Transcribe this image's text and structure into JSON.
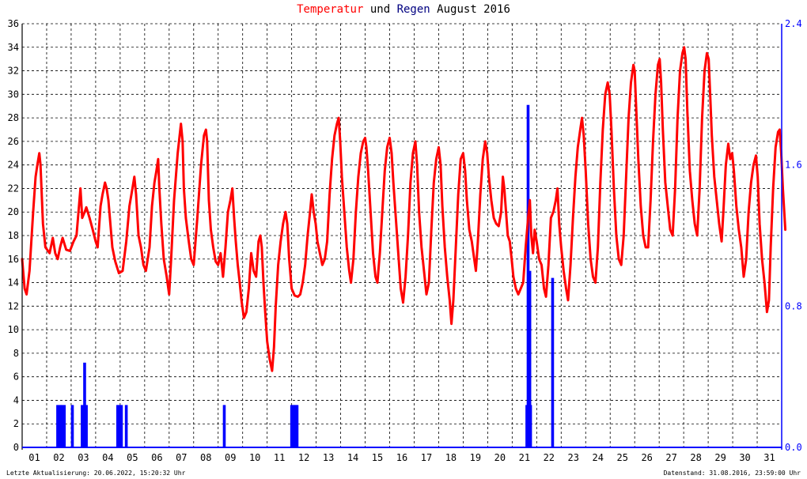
{
  "title": {
    "temp": "Temperatur",
    "und": "und",
    "rain": "Regen",
    "month": "August 2016"
  },
  "footer": {
    "left": "Letzte Aktualisierung: 20.06.2022, 15:20:32 Uhr",
    "right": "Datenstand: 31.08.2016, 23:59:00 Uhr"
  },
  "colors": {
    "temperature": "#ff0000",
    "rain": "#0000ff",
    "right_axis": "#0000ff",
    "grid": "#000000"
  },
  "chart_data": {
    "type": "line",
    "title": "Temperatur und Regen August 2016",
    "grid": true,
    "x_categories": [
      "01",
      "02",
      "03",
      "04",
      "05",
      "06",
      "07",
      "08",
      "09",
      "10",
      "11",
      "12",
      "13",
      "14",
      "15",
      "16",
      "17",
      "18",
      "19",
      "20",
      "21",
      "22",
      "23",
      "24",
      "25",
      "26",
      "27",
      "28",
      "29",
      "30",
      "31"
    ],
    "left_axis": {
      "ylim": [
        0,
        36
      ],
      "ticks": [
        0,
        2,
        4,
        6,
        8,
        10,
        12,
        14,
        16,
        18,
        20,
        22,
        24,
        26,
        28,
        30,
        32,
        34,
        36
      ]
    },
    "right_axis": {
      "ylim": [
        0,
        2.4
      ],
      "ticks": [
        "0.0",
        "0.8",
        "1.6",
        "2.4"
      ]
    },
    "temperature_series": [
      [
        0.0,
        16.0
      ],
      [
        0.1,
        13.5
      ],
      [
        0.18,
        13.0
      ],
      [
        0.3,
        15.0
      ],
      [
        0.45,
        20.0
      ],
      [
        0.55,
        23.0
      ],
      [
        0.62,
        24.0
      ],
      [
        0.7,
        25.0
      ],
      [
        0.75,
        24.0
      ],
      [
        0.85,
        19.0
      ],
      [
        0.95,
        17.0
      ],
      [
        1.12,
        16.5
      ],
      [
        1.25,
        17.8
      ],
      [
        1.35,
        16.5
      ],
      [
        1.45,
        16.0
      ],
      [
        1.55,
        17.0
      ],
      [
        1.65,
        17.8
      ],
      [
        1.8,
        16.8
      ],
      [
        1.95,
        16.7
      ],
      [
        2.1,
        17.5
      ],
      [
        2.22,
        18.0
      ],
      [
        2.3,
        20.0
      ],
      [
        2.38,
        22.0
      ],
      [
        2.45,
        19.5
      ],
      [
        2.55,
        20.0
      ],
      [
        2.62,
        20.4
      ],
      [
        2.75,
        19.5
      ],
      [
        2.88,
        18.5
      ],
      [
        3.0,
        17.5
      ],
      [
        3.08,
        17.0
      ],
      [
        3.2,
        20.5
      ],
      [
        3.28,
        21.5
      ],
      [
        3.38,
        22.5
      ],
      [
        3.45,
        22.0
      ],
      [
        3.52,
        21.0
      ],
      [
        3.6,
        19.0
      ],
      [
        3.68,
        17.0
      ],
      [
        3.8,
        15.8
      ],
      [
        3.95,
        14.8
      ],
      [
        4.1,
        15.0
      ],
      [
        4.25,
        17.5
      ],
      [
        4.38,
        20.5
      ],
      [
        4.5,
        22.0
      ],
      [
        4.58,
        23.0
      ],
      [
        4.65,
        21.5
      ],
      [
        4.75,
        18.0
      ],
      [
        4.85,
        17.0
      ],
      [
        4.95,
        15.5
      ],
      [
        5.05,
        15.0
      ],
      [
        5.2,
        17.0
      ],
      [
        5.3,
        20.5
      ],
      [
        5.4,
        22.5
      ],
      [
        5.48,
        23.5
      ],
      [
        5.55,
        24.5
      ],
      [
        5.6,
        22.0
      ],
      [
        5.68,
        19.0
      ],
      [
        5.78,
        16.0
      ],
      [
        5.9,
        14.5
      ],
      [
        6.0,
        13.0
      ],
      [
        6.08,
        16.0
      ],
      [
        6.2,
        21.0
      ],
      [
        6.35,
        25.0
      ],
      [
        6.48,
        27.5
      ],
      [
        6.55,
        26.0
      ],
      [
        6.6,
        22.0
      ],
      [
        6.68,
        19.5
      ],
      [
        6.8,
        17.5
      ],
      [
        6.9,
        16.0
      ],
      [
        7.0,
        15.5
      ],
      [
        7.15,
        19.5
      ],
      [
        7.3,
        24.0
      ],
      [
        7.42,
        26.5
      ],
      [
        7.5,
        27.0
      ],
      [
        7.55,
        26.0
      ],
      [
        7.62,
        21.0
      ],
      [
        7.7,
        18.5
      ],
      [
        7.8,
        17.0
      ],
      [
        7.9,
        15.8
      ],
      [
        8.0,
        15.5
      ],
      [
        8.1,
        16.5
      ],
      [
        8.2,
        14.5
      ],
      [
        8.3,
        17.0
      ],
      [
        8.4,
        20.0
      ],
      [
        8.5,
        21.0
      ],
      [
        8.58,
        22.0
      ],
      [
        8.65,
        19.5
      ],
      [
        8.72,
        17.5
      ],
      [
        8.8,
        15.5
      ],
      [
        8.88,
        14.0
      ],
      [
        8.95,
        12.5
      ],
      [
        9.05,
        11.0
      ],
      [
        9.15,
        11.5
      ],
      [
        9.25,
        13.5
      ],
      [
        9.35,
        16.5
      ],
      [
        9.45,
        15.0
      ],
      [
        9.55,
        14.5
      ],
      [
        9.65,
        17.5
      ],
      [
        9.72,
        18.0
      ],
      [
        9.78,
        17.0
      ],
      [
        9.85,
        14.0
      ],
      [
        9.92,
        11.5
      ],
      [
        10.0,
        9.0
      ],
      [
        10.1,
        7.5
      ],
      [
        10.2,
        6.5
      ],
      [
        10.28,
        8.5
      ],
      [
        10.35,
        12.0
      ],
      [
        10.45,
        15.5
      ],
      [
        10.55,
        17.5
      ],
      [
        10.65,
        19.0
      ],
      [
        10.75,
        20.0
      ],
      [
        10.82,
        19.0
      ],
      [
        10.9,
        16.0
      ],
      [
        11.0,
        13.5
      ],
      [
        11.12,
        12.9
      ],
      [
        11.25,
        12.8
      ],
      [
        11.35,
        13.0
      ],
      [
        11.45,
        14.0
      ],
      [
        11.55,
        15.5
      ],
      [
        11.65,
        18.0
      ],
      [
        11.75,
        20.0
      ],
      [
        11.82,
        21.5
      ],
      [
        11.9,
        20.0
      ],
      [
        11.98,
        19.0
      ],
      [
        12.05,
        17.5
      ],
      [
        12.15,
        16.5
      ],
      [
        12.25,
        15.5
      ],
      [
        12.35,
        16.0
      ],
      [
        12.45,
        17.5
      ],
      [
        12.55,
        21.5
      ],
      [
        12.65,
        24.5
      ],
      [
        12.75,
        26.5
      ],
      [
        12.85,
        27.5
      ],
      [
        12.92,
        28.0
      ],
      [
        12.98,
        26.0
      ],
      [
        13.05,
        23.0
      ],
      [
        13.15,
        20.0
      ],
      [
        13.25,
        17.0
      ],
      [
        13.35,
        15.0
      ],
      [
        13.42,
        14.0
      ],
      [
        13.52,
        16.0
      ],
      [
        13.62,
        20.0
      ],
      [
        13.72,
        23.0
      ],
      [
        13.82,
        25.0
      ],
      [
        13.92,
        26.0
      ],
      [
        14.0,
        26.3
      ],
      [
        14.05,
        25.5
      ],
      [
        14.12,
        23.5
      ],
      [
        14.22,
        20.0
      ],
      [
        14.32,
        16.5
      ],
      [
        14.42,
        14.5
      ],
      [
        14.5,
        14.0
      ],
      [
        14.6,
        16.5
      ],
      [
        14.7,
        20.0
      ],
      [
        14.8,
        23.5
      ],
      [
        14.9,
        25.5
      ],
      [
        15.0,
        26.3
      ],
      [
        15.08,
        25.0
      ],
      [
        15.15,
        22.5
      ],
      [
        15.25,
        19.5
      ],
      [
        15.35,
        16.5
      ],
      [
        15.45,
        13.5
      ],
      [
        15.55,
        12.3
      ],
      [
        15.65,
        14.5
      ],
      [
        15.75,
        18.0
      ],
      [
        15.85,
        22.5
      ],
      [
        15.95,
        25.0
      ],
      [
        16.05,
        26.0
      ],
      [
        16.12,
        24.0
      ],
      [
        16.2,
        20.0
      ],
      [
        16.3,
        17.0
      ],
      [
        16.4,
        15.0
      ],
      [
        16.5,
        13.0
      ],
      [
        16.6,
        14.0
      ],
      [
        16.7,
        18.5
      ],
      [
        16.8,
        22.5
      ],
      [
        16.9,
        24.5
      ],
      [
        17.0,
        25.5
      ],
      [
        17.08,
        24.0
      ],
      [
        17.15,
        20.5
      ],
      [
        17.25,
        17.0
      ],
      [
        17.35,
        14.5
      ],
      [
        17.45,
        12.5
      ],
      [
        17.52,
        10.5
      ],
      [
        17.6,
        12.5
      ],
      [
        17.7,
        17.0
      ],
      [
        17.8,
        21.5
      ],
      [
        17.9,
        24.5
      ],
      [
        18.0,
        25.0
      ],
      [
        18.08,
        23.5
      ],
      [
        18.15,
        21.0
      ],
      [
        18.25,
        18.5
      ],
      [
        18.35,
        17.5
      ],
      [
        18.45,
        16.0
      ],
      [
        18.52,
        15.0
      ],
      [
        18.6,
        17.5
      ],
      [
        18.7,
        21.5
      ],
      [
        18.8,
        24.5
      ],
      [
        18.9,
        26.0
      ],
      [
        18.98,
        25.0
      ],
      [
        19.05,
        23.0
      ],
      [
        19.15,
        21.0
      ],
      [
        19.25,
        19.5
      ],
      [
        19.35,
        19.0
      ],
      [
        19.45,
        18.8
      ],
      [
        19.55,
        20.0
      ],
      [
        19.62,
        23.0
      ],
      [
        19.68,
        22.0
      ],
      [
        19.75,
        20.0
      ],
      [
        19.82,
        18.0
      ],
      [
        19.9,
        17.5
      ],
      [
        19.98,
        16.0
      ],
      [
        20.05,
        14.5
      ],
      [
        20.15,
        13.5
      ],
      [
        20.25,
        13.0
      ],
      [
        20.35,
        13.5
      ],
      [
        20.45,
        14.0
      ],
      [
        20.55,
        17.0
      ],
      [
        20.65,
        19.5
      ],
      [
        20.72,
        21.0
      ],
      [
        20.78,
        18.0
      ],
      [
        20.85,
        16.5
      ],
      [
        20.92,
        18.5
      ],
      [
        21.0,
        17.5
      ],
      [
        21.1,
        16.0
      ],
      [
        21.2,
        15.5
      ],
      [
        21.3,
        13.5
      ],
      [
        21.38,
        12.8
      ],
      [
        21.48,
        15.5
      ],
      [
        21.58,
        19.5
      ],
      [
        21.68,
        20.0
      ],
      [
        21.78,
        21.0
      ],
      [
        21.85,
        22.0
      ],
      [
        21.92,
        19.0
      ],
      [
        22.0,
        17.0
      ],
      [
        22.1,
        15.0
      ],
      [
        22.2,
        13.5
      ],
      [
        22.28,
        12.5
      ],
      [
        22.38,
        15.5
      ],
      [
        22.48,
        19.5
      ],
      [
        22.58,
        23.0
      ],
      [
        22.68,
        25.5
      ],
      [
        22.78,
        27.0
      ],
      [
        22.85,
        28.0
      ],
      [
        22.92,
        26.5
      ],
      [
        23.0,
        23.5
      ],
      [
        23.1,
        19.0
      ],
      [
        23.2,
        16.0
      ],
      [
        23.3,
        14.5
      ],
      [
        23.4,
        14.0
      ],
      [
        23.5,
        17.0
      ],
      [
        23.6,
        22.5
      ],
      [
        23.7,
        27.0
      ],
      [
        23.8,
        30.0
      ],
      [
        23.9,
        31.0
      ],
      [
        23.98,
        30.0
      ],
      [
        24.05,
        27.0
      ],
      [
        24.15,
        22.0
      ],
      [
        24.25,
        18.0
      ],
      [
        24.35,
        16.0
      ],
      [
        24.45,
        15.5
      ],
      [
        24.55,
        18.0
      ],
      [
        24.65,
        23.0
      ],
      [
        24.75,
        28.0
      ],
      [
        24.85,
        31.0
      ],
      [
        24.95,
        32.5
      ],
      [
        25.0,
        32.0
      ],
      [
        25.05,
        29.5
      ],
      [
        25.15,
        24.5
      ],
      [
        25.25,
        20.5
      ],
      [
        25.35,
        18.0
      ],
      [
        25.45,
        17.0
      ],
      [
        25.55,
        17.0
      ],
      [
        25.65,
        21.0
      ],
      [
        25.75,
        26.0
      ],
      [
        25.85,
        30.0
      ],
      [
        25.95,
        32.5
      ],
      [
        26.02,
        33.0
      ],
      [
        26.08,
        31.0
      ],
      [
        26.15,
        27.0
      ],
      [
        26.25,
        22.5
      ],
      [
        26.35,
        20.5
      ],
      [
        26.45,
        18.5
      ],
      [
        26.55,
        18.0
      ],
      [
        26.65,
        22.0
      ],
      [
        26.75,
        28.0
      ],
      [
        26.85,
        32.0
      ],
      [
        26.95,
        33.5
      ],
      [
        27.02,
        34.0
      ],
      [
        27.08,
        33.0
      ],
      [
        27.15,
        28.5
      ],
      [
        27.25,
        23.5
      ],
      [
        27.35,
        21.0
      ],
      [
        27.45,
        19.0
      ],
      [
        27.55,
        18.0
      ],
      [
        27.65,
        22.0
      ],
      [
        27.75,
        28.0
      ],
      [
        27.85,
        32.0
      ],
      [
        27.95,
        33.5
      ],
      [
        28.02,
        33.0
      ],
      [
        28.08,
        30.0
      ],
      [
        28.15,
        26.5
      ],
      [
        28.25,
        23.0
      ],
      [
        28.35,
        21.0
      ],
      [
        28.45,
        19.0
      ],
      [
        28.55,
        17.5
      ],
      [
        28.62,
        20.0
      ],
      [
        28.72,
        24.0
      ],
      [
        28.82,
        25.8
      ],
      [
        28.9,
        24.5
      ],
      [
        28.98,
        25.0
      ],
      [
        29.05,
        23.5
      ],
      [
        29.15,
        20.5
      ],
      [
        29.25,
        18.5
      ],
      [
        29.35,
        17.0
      ],
      [
        29.45,
        14.5
      ],
      [
        29.55,
        16.0
      ],
      [
        29.65,
        20.0
      ],
      [
        29.75,
        22.5
      ],
      [
        29.85,
        24.0
      ],
      [
        29.95,
        24.8
      ],
      [
        30.02,
        23.0
      ],
      [
        30.1,
        19.0
      ],
      [
        30.2,
        16.0
      ],
      [
        30.3,
        14.0
      ],
      [
        30.4,
        11.5
      ],
      [
        30.48,
        12.5
      ],
      [
        30.55,
        17.0
      ],
      [
        30.65,
        22.0
      ],
      [
        30.75,
        25.5
      ],
      [
        30.85,
        26.8
      ],
      [
        30.92,
        27.0
      ],
      [
        30.98,
        25.0
      ],
      [
        31.05,
        22.0
      ],
      [
        31.15,
        18.5
      ]
    ],
    "rain_series": [
      [
        1.45,
        0.24
      ],
      [
        1.55,
        0.24
      ],
      [
        1.62,
        0.24
      ],
      [
        1.72,
        0.24
      ],
      [
        2.05,
        0.24
      ],
      [
        2.45,
        0.24
      ],
      [
        2.55,
        0.48
      ],
      [
        2.62,
        0.24
      ],
      [
        3.9,
        0.24
      ],
      [
        3.98,
        0.24
      ],
      [
        4.05,
        0.24
      ],
      [
        4.25,
        0.24
      ],
      [
        8.25,
        0.24
      ],
      [
        11.0,
        0.24
      ],
      [
        11.08,
        0.24
      ],
      [
        11.15,
        0.24
      ],
      [
        11.22,
        0.24
      ],
      [
        20.6,
        0.24
      ],
      [
        20.65,
        1.94
      ],
      [
        20.72,
        1.0
      ],
      [
        20.75,
        0.24
      ],
      [
        21.65,
        0.96
      ]
    ]
  }
}
